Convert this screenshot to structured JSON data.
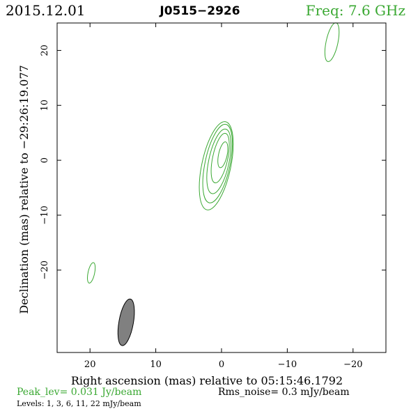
{
  "header": {
    "date": "2015.12.01",
    "source": "J0515−2926",
    "freq": "Freq: 7.6 GHz"
  },
  "axes": {
    "xlabel": "Right ascension (mas) relative to 05:15:46.1792",
    "ylabel": "Declination (mas) relative to −29:26:19.077",
    "xrange": [
      25,
      -25
    ],
    "yrange": [
      -35,
      25
    ],
    "xticks": [
      20,
      10,
      0,
      -10,
      -20
    ],
    "yticks": [
      20,
      10,
      0,
      -10,
      -20
    ],
    "xtick_labels": [
      "20",
      "10",
      "0",
      "−10",
      "−20"
    ],
    "ytick_labels": [
      "20",
      "10",
      "0",
      "−10",
      "−20"
    ]
  },
  "footer": {
    "peak": "Peak_lev=  0.031 Jy/beam",
    "rms": "Rms_noise=  0.3 mJy/beam",
    "levels": "Levels:   1,   3,   6,   11,   22 mJy/beam"
  },
  "colors": {
    "contour": "#3aa832",
    "beam_fill": "#808080",
    "text_green": "#3aa832",
    "frame": "#000000"
  },
  "chart_data": {
    "type": "contour",
    "levels_mJy_per_beam": [
      1,
      3,
      6,
      11,
      22
    ],
    "peak_Jy_per_beam": 0.031,
    "rms_mJy_per_beam": 0.3,
    "main_component": {
      "center_mas": [
        0,
        0
      ],
      "contours": [
        {
          "cx": 0.8,
          "cy": -1.0,
          "a": 2.2,
          "b": 8.2,
          "pa": 12
        },
        {
          "cx": 0.6,
          "cy": -0.6,
          "a": 1.9,
          "b": 7.3,
          "pa": 12
        },
        {
          "cx": 0.4,
          "cy": -0.2,
          "a": 1.55,
          "b": 6.0,
          "pa": 12
        },
        {
          "cx": 0.2,
          "cy": 0.4,
          "a": 1.15,
          "b": 4.6,
          "pa": 12
        },
        {
          "cx": -0.2,
          "cy": 1.0,
          "a": 0.65,
          "b": 2.4,
          "pa": 12
        }
      ]
    },
    "sidelobes": [
      {
        "cx": -16.8,
        "cy": 21.5,
        "a": 0.9,
        "b": 3.6,
        "pa": 12
      },
      {
        "cx": 19.8,
        "cy": -20.5,
        "a": 0.5,
        "b": 1.9,
        "pa": 12
      }
    ],
    "beam": {
      "cx": 14.5,
      "cy": -29.5,
      "a": 1.1,
      "b": 4.3,
      "pa": 10
    }
  }
}
